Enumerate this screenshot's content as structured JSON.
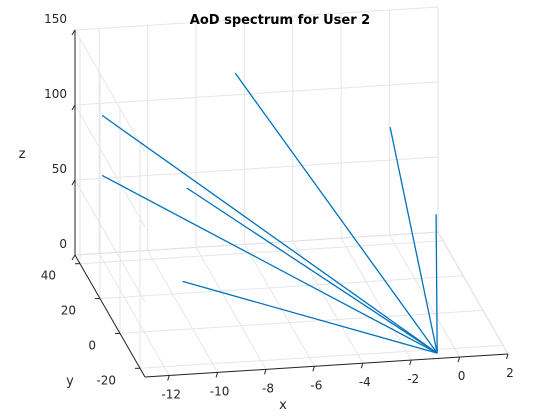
{
  "chart_data": {
    "type": "line",
    "title": "AoD spectrum for User 2",
    "xlabel": "x",
    "ylabel": "y",
    "zlabel": "z",
    "x_ticks": [
      "-12",
      "-10",
      "-8",
      "-6",
      "-4",
      "-2",
      "0",
      "2"
    ],
    "y_ticks": [
      "-20",
      "0",
      "20",
      "40"
    ],
    "z_ticks": [
      "0",
      "50",
      "100",
      "150"
    ],
    "xlim": [
      -13,
      2
    ],
    "ylim": [
      -25,
      45
    ],
    "zlim": [
      0,
      150
    ],
    "grid": true,
    "line_color": "#0072bd",
    "origin": [
      -0.8,
      -22,
      0
    ],
    "series": [
      {
        "x": [
          -0.8,
          -12.5
        ],
        "y": [
          -22,
          30
        ],
        "z": [
          0,
          110
        ]
      },
      {
        "x": [
          -0.8,
          -6.5
        ],
        "y": [
          -22,
          42
        ],
        "z": [
          0,
          118
        ]
      },
      {
        "x": [
          -0.8,
          -12.5
        ],
        "y": [
          -22,
          30
        ],
        "z": [
          0,
          70
        ]
      },
      {
        "x": [
          -0.8,
          -9.0
        ],
        "y": [
          -22,
          30
        ],
        "z": [
          0,
          58
        ]
      },
      {
        "x": [
          -0.8,
          -10.0
        ],
        "y": [
          -22,
          10
        ],
        "z": [
          0,
          20
        ]
      },
      {
        "x": [
          -0.8,
          -0.6
        ],
        "y": [
          -22,
          30
        ],
        "z": [
          0,
          90
        ]
      },
      {
        "x": [
          -0.8,
          1.3
        ],
        "y": [
          -22,
          30
        ],
        "z": [
          0,
          30
        ]
      }
    ]
  }
}
